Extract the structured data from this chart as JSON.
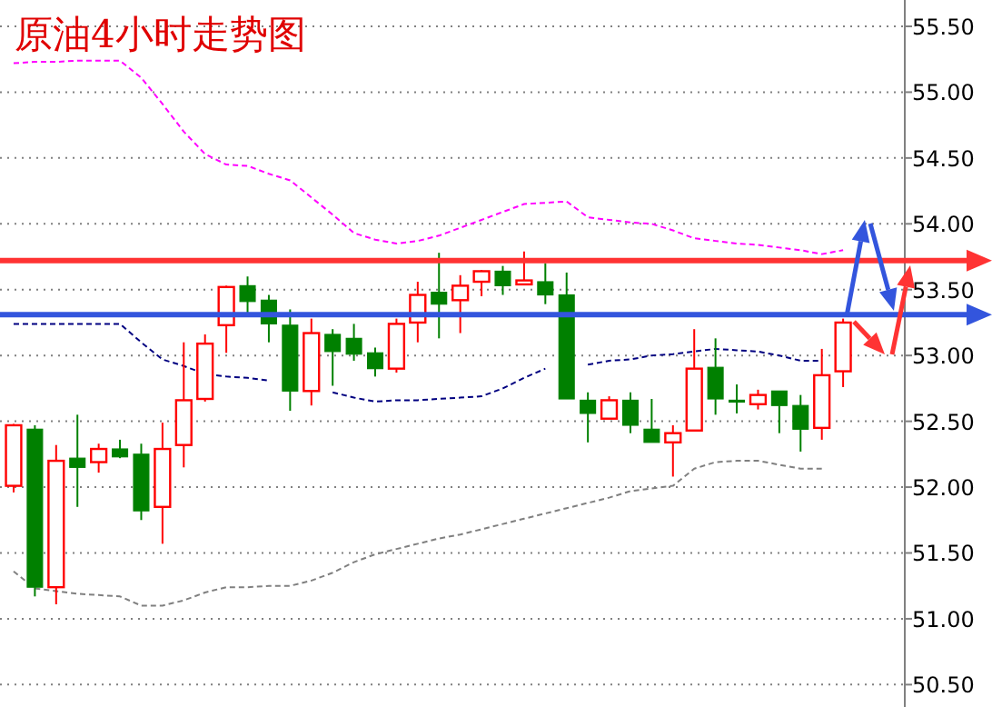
{
  "chart_data": {
    "type": "candlestick",
    "title": "原油4小时走势图",
    "categories": [
      null,
      null,
      null,
      null,
      null,
      null,
      null,
      null,
      null,
      null,
      null,
      null,
      null,
      null,
      null,
      null,
      null,
      null,
      null,
      null,
      null,
      null,
      null,
      null,
      null,
      null,
      null,
      null,
      null,
      null,
      null,
      null,
      null,
      null,
      null,
      null,
      null,
      null,
      null,
      null
    ],
    "ohlc": [
      [
        52.01,
        52.48,
        51.96,
        52.47
      ],
      [
        52.44,
        52.47,
        51.17,
        51.24
      ],
      [
        51.24,
        52.32,
        51.11,
        52.2
      ],
      [
        52.22,
        52.55,
        51.85,
        52.15
      ],
      [
        52.19,
        52.33,
        52.11,
        52.29
      ],
      [
        52.29,
        52.36,
        52.22,
        52.23
      ],
      [
        52.25,
        52.33,
        51.75,
        51.82
      ],
      [
        51.85,
        52.49,
        51.57,
        52.29
      ],
      [
        52.32,
        53.1,
        52.15,
        52.66
      ],
      [
        52.67,
        53.16,
        52.65,
        53.09
      ],
      [
        53.23,
        53.53,
        53.02,
        53.52
      ],
      [
        53.53,
        53.6,
        53.32,
        53.41
      ],
      [
        53.42,
        53.46,
        53.1,
        53.24
      ],
      [
        53.23,
        53.35,
        52.58,
        52.73
      ],
      [
        52.73,
        53.28,
        52.62,
        53.17
      ],
      [
        53.16,
        53.2,
        52.77,
        53.03
      ],
      [
        53.13,
        53.24,
        52.96,
        53.01
      ],
      [
        53.02,
        53.06,
        52.84,
        52.9
      ],
      [
        52.9,
        53.28,
        52.87,
        53.24
      ],
      [
        53.25,
        53.56,
        53.1,
        53.46
      ],
      [
        53.48,
        53.78,
        53.13,
        53.39
      ],
      [
        53.42,
        53.61,
        53.17,
        53.53
      ],
      [
        53.56,
        53.65,
        53.45,
        53.64
      ],
      [
        53.64,
        53.68,
        53.46,
        53.53
      ],
      [
        53.54,
        53.79,
        53.54,
        53.57
      ],
      [
        53.56,
        53.7,
        53.39,
        53.46
      ],
      [
        53.46,
        53.63,
        52.67,
        52.67
      ],
      [
        52.66,
        52.72,
        52.34,
        52.56
      ],
      [
        52.52,
        52.69,
        52.52,
        52.66
      ],
      [
        52.66,
        52.72,
        52.41,
        52.47
      ],
      [
        52.44,
        52.67,
        52.34,
        52.34
      ],
      [
        52.34,
        52.47,
        52.08,
        52.41
      ],
      [
        52.43,
        53.2,
        52.43,
        52.9
      ],
      [
        52.91,
        53.13,
        52.55,
        52.67
      ],
      [
        52.66,
        52.78,
        52.56,
        52.65
      ],
      [
        52.63,
        52.74,
        52.59,
        52.7
      ],
      [
        52.73,
        52.73,
        52.41,
        52.62
      ],
      [
        52.62,
        52.7,
        52.27,
        52.44
      ],
      [
        52.45,
        53.05,
        52.36,
        52.85
      ],
      [
        52.88,
        53.28,
        52.76,
        53.25
      ]
    ],
    "colors": [
      "#ff0000",
      "#008000",
      "#ff0000",
      "#008000",
      "#ff0000",
      "#008000",
      "#008000",
      "#ff0000",
      "#ff0000",
      "#ff0000",
      "#ff0000",
      "#008000",
      "#008000",
      "#008000",
      "#ff0000",
      "#008000",
      "#008000",
      "#008000",
      "#ff0000",
      "#ff0000",
      "#008000",
      "#ff0000",
      "#ff0000",
      "#008000",
      "#ff0000",
      "#008000",
      "#008000",
      "#008000",
      "#ff0000",
      "#008000",
      "#008000",
      "#ff0000",
      "#ff0000",
      "#008000",
      "#008000",
      "#ff0000",
      "#008000",
      "#008000",
      "#ff0000",
      "#ff0000"
    ],
    "series": [
      {
        "type": "line",
        "color": "#ff00ff",
        "line_style": "dashed",
        "values": [
          55.22,
          55.23,
          55.23,
          55.24,
          55.24,
          55.24,
          55.11,
          54.91,
          54.7,
          54.53,
          54.45,
          54.44,
          54.38,
          54.33,
          54.2,
          54.07,
          53.93,
          53.88,
          53.85,
          53.87,
          53.91,
          53.97,
          54.03,
          54.09,
          54.15,
          54.16,
          54.17,
          54.05,
          54.03,
          54.01,
          54.0,
          53.95,
          53.89,
          53.87,
          53.85,
          53.84,
          53.82,
          53.8,
          53.77,
          53.8
        ]
      },
      {
        "type": "line",
        "color": "#000080",
        "line_style": "dashed",
        "values": [
          53.24,
          53.24,
          53.24,
          53.24,
          53.24,
          53.24,
          53.1,
          52.97,
          52.92,
          52.86,
          52.84,
          52.83,
          52.81,
          null,
          null,
          52.72,
          52.68,
          52.65,
          52.66,
          52.66,
          52.67,
          52.68,
          52.69,
          52.75,
          52.83,
          52.9,
          null,
          52.93,
          52.96,
          52.97,
          53.0,
          53.01,
          53.03,
          53.05,
          53.04,
          53.03,
          53.0,
          52.96,
          52.96,
          null
        ]
      },
      {
        "type": "line",
        "color": "#808080",
        "line_style": "dashed",
        "values": [
          51.36,
          51.23,
          51.21,
          51.19,
          51.18,
          51.17,
          51.1,
          51.1,
          51.14,
          51.2,
          51.24,
          51.24,
          51.25,
          51.25,
          51.29,
          51.35,
          51.43,
          51.49,
          51.53,
          51.57,
          51.61,
          51.64,
          51.68,
          51.72,
          51.76,
          51.8,
          51.84,
          51.88,
          51.92,
          51.97,
          51.99,
          52.01,
          52.14,
          52.19,
          52.2,
          52.2,
          52.17,
          52.14,
          52.14,
          null
        ]
      }
    ],
    "ref_lines": [
      {
        "axis": "y",
        "value": 53.72,
        "color": "#ff3333"
      },
      {
        "axis": "y",
        "value": 53.31,
        "color": "#3355dd"
      }
    ],
    "ylim": [
      50.33,
      55.7
    ],
    "yticks": [
      {
        "value": 50.5,
        "label": "50.50"
      },
      {
        "value": 51,
        "label": "51.00"
      },
      {
        "value": 51.5,
        "label": "51.50"
      },
      {
        "value": 52,
        "label": "52.00"
      },
      {
        "value": 52.5,
        "label": "52.50"
      },
      {
        "value": 53,
        "label": "53.00"
      },
      {
        "value": 53.5,
        "label": "53.50"
      },
      {
        "value": 54,
        "label": "54.00"
      },
      {
        "value": 54.5,
        "label": "54.50"
      },
      {
        "value": 55,
        "label": "55.00"
      },
      {
        "value": 55.5,
        "label": "55.50"
      }
    ],
    "grid": "y"
  }
}
